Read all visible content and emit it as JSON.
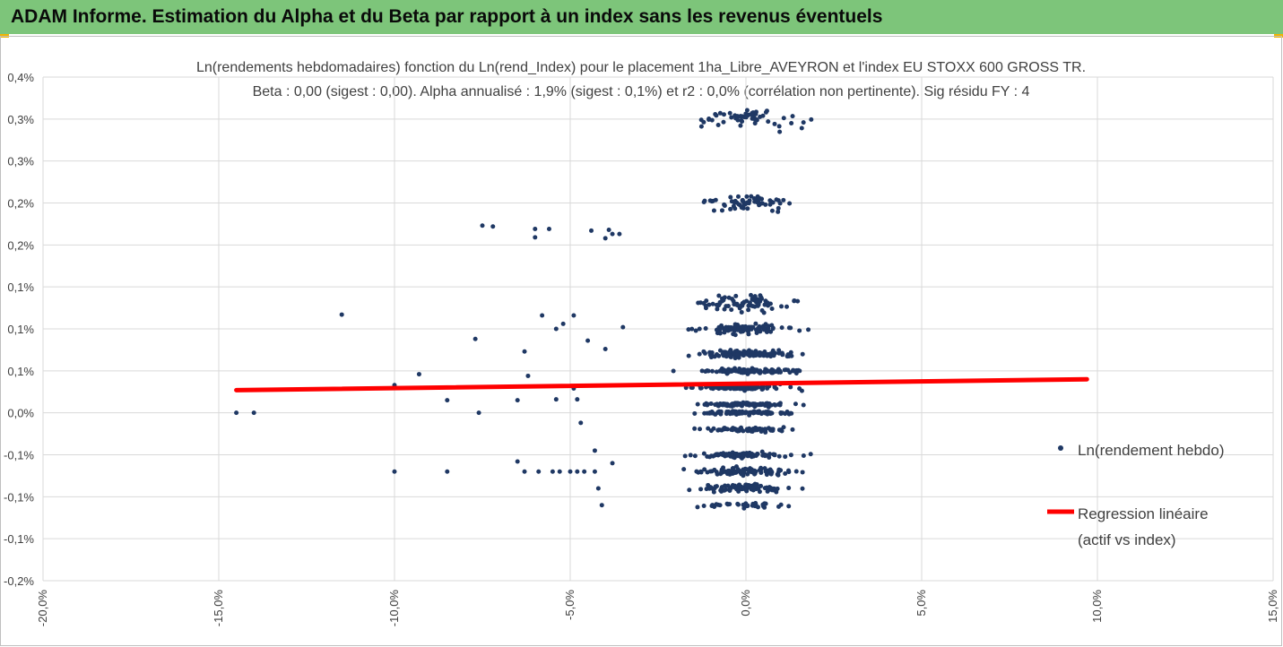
{
  "banner": {
    "title": "ADAM Informe. Estimation du Alpha et du Beta par rapport à un index sans les revenus éventuels",
    "accent_color": "#7dc57a",
    "corner_color": "#f2b400"
  },
  "chart_data": {
    "type": "scatter",
    "title": "Ln(rendements hebdomadaires) fonction du Ln(rend_Index) pour le placement 1ha_Libre_AVEYRON et l'index EU STOXX 600 GROSS TR.",
    "subtitle": "Beta : 0,00 (sigest : 0,00). Alpha annualisé : 1,9% (sigest : 0,1%) et r2 : 0,0% (corrélation non pertinente). Sig résidu FY : 4",
    "xlabel": "",
    "ylabel": "",
    "xlim": [
      -0.2,
      0.15
    ],
    "ylim": [
      -0.002,
      0.004
    ],
    "x_ticks": [
      -0.2,
      -0.15,
      -0.1,
      -0.05,
      0.0,
      0.05,
      0.1,
      0.15
    ],
    "x_tick_labels": [
      "-20,0%",
      "-15,0%",
      "-10,0%",
      "-5,0%",
      "0,0%",
      "5,0%",
      "10,0%",
      "15,0%"
    ],
    "y_ticks": [
      0.004,
      0.0035,
      0.003,
      0.0025,
      0.002,
      0.0015,
      0.001,
      0.0005,
      0.0,
      -0.0005,
      -0.001,
      -0.0015,
      -0.002
    ],
    "y_tick_labels": [
      "0,4%",
      "0,3%",
      "0,3%",
      "0,2%",
      "0,2%",
      "0,1%",
      "0,1%",
      "0,1%",
      "0,0%",
      "-0,1%",
      "-0,1%",
      "-0,1%",
      "-0,2%"
    ],
    "grid": "vertical",
    "legend_position": "right",
    "series": [
      {
        "name": "Ln(rendement hebdo)",
        "kind": "scatter",
        "color": "#1f3864",
        "points": [
          [
            -0.145,
            0.0
          ],
          [
            -0.14,
            0.0
          ],
          [
            -0.115,
            0.00117
          ],
          [
            -0.1,
            -0.0007
          ],
          [
            -0.1,
            0.00033
          ],
          [
            -0.093,
            0.00046
          ],
          [
            -0.085,
            -0.0007
          ],
          [
            -0.085,
            0.00015
          ],
          [
            -0.077,
            0.00088
          ],
          [
            -0.076,
            0.0
          ],
          [
            -0.075,
            0.00223
          ],
          [
            -0.072,
            0.00222
          ],
          [
            -0.065,
            -0.00058
          ],
          [
            -0.065,
            0.00015
          ],
          [
            -0.063,
            -0.0007
          ],
          [
            -0.063,
            0.00073
          ],
          [
            -0.062,
            0.00044
          ],
          [
            -0.06,
            0.00219
          ],
          [
            -0.06,
            0.00209
          ],
          [
            -0.059,
            -0.0007
          ],
          [
            -0.058,
            0.00116
          ],
          [
            -0.056,
            0.00219
          ],
          [
            -0.055,
            -0.0007
          ],
          [
            -0.054,
            0.00016
          ],
          [
            -0.054,
            0.001
          ],
          [
            -0.053,
            -0.0007
          ],
          [
            -0.052,
            0.00106
          ],
          [
            -0.05,
            -0.0007
          ],
          [
            -0.049,
            0.00116
          ],
          [
            -0.048,
            -0.0007
          ],
          [
            -0.049,
            0.00029
          ],
          [
            -0.048,
            0.00016
          ],
          [
            -0.047,
            -0.00012
          ],
          [
            -0.046,
            -0.0007
          ],
          [
            -0.045,
            0.00086
          ],
          [
            -0.044,
            0.00217
          ],
          [
            -0.043,
            -0.0007
          ],
          [
            -0.043,
            -0.00045
          ],
          [
            -0.042,
            -0.0009
          ],
          [
            -0.041,
            -0.0011
          ],
          [
            -0.04,
            0.00076
          ],
          [
            -0.04,
            0.00208
          ],
          [
            -0.039,
            0.00218
          ],
          [
            -0.038,
            -0.0006
          ],
          [
            -0.038,
            0.00213
          ],
          [
            -0.036,
            0.00213
          ],
          [
            -0.035,
            0.00102
          ]
        ]
      },
      {
        "name": "Regression linéaire (actif vs index)",
        "kind": "line",
        "color": "#ff0000",
        "points": [
          [
            -0.145,
            0.00027
          ],
          [
            0.097,
            0.0004
          ]
        ]
      }
    ]
  },
  "legend": {
    "items": [
      {
        "label": "Ln(rendement hebdo)",
        "color": "#1f3864"
      },
      {
        "label_line1": "Regression linéaire",
        "label_line2": "(actif vs index)",
        "color": "#ff0000"
      }
    ]
  }
}
